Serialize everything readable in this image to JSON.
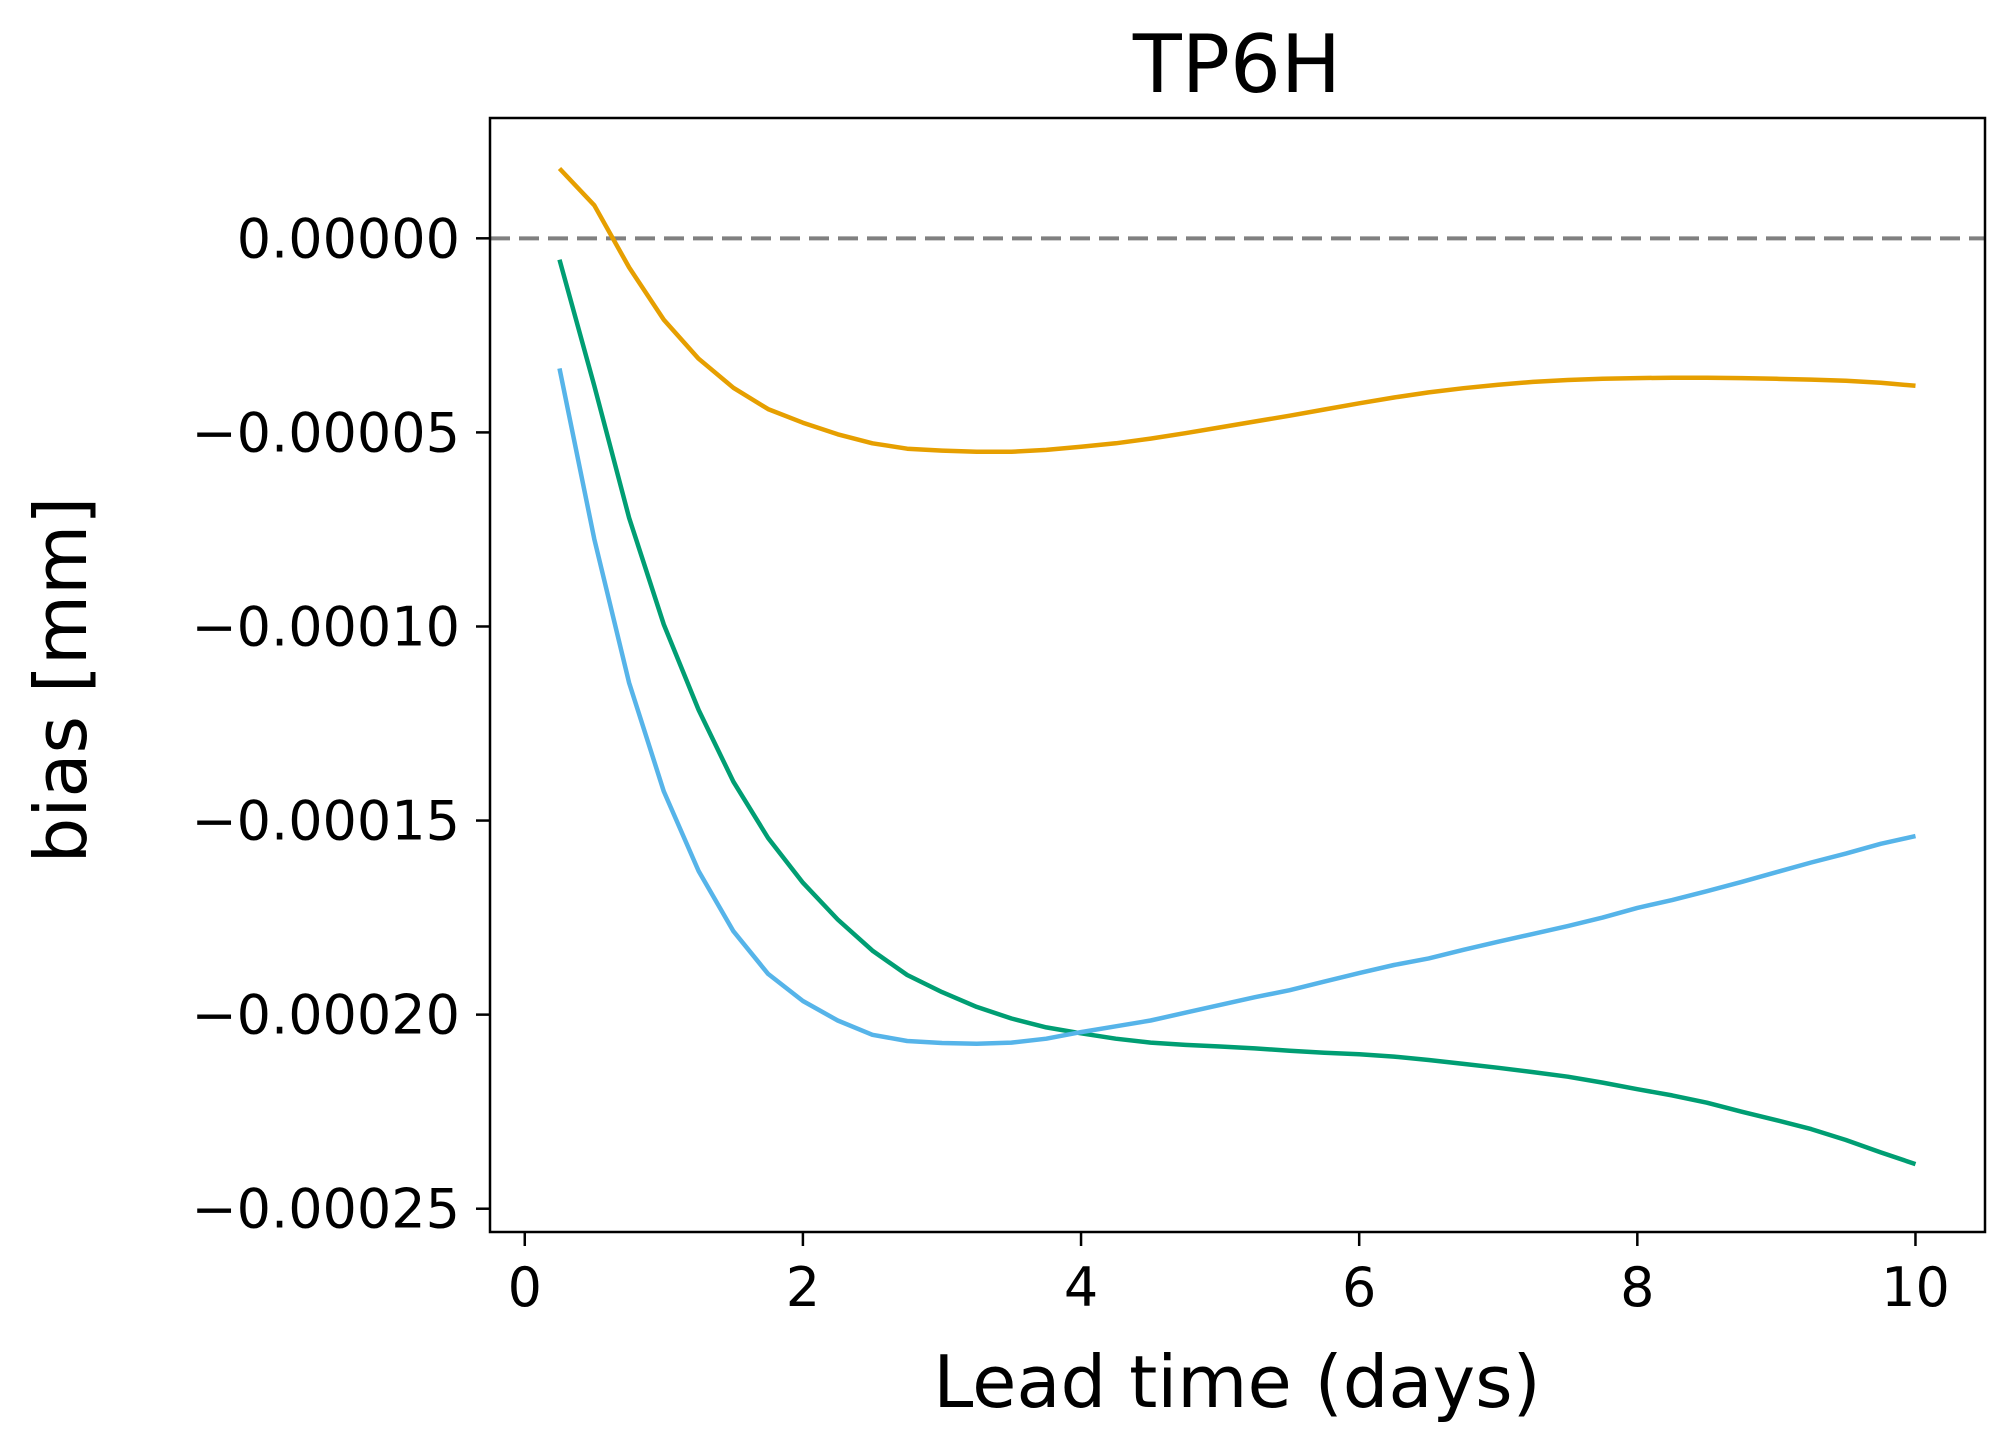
{
  "chart_data": {
    "type": "line",
    "title": "TP6H",
    "xlabel": "Lead time (days)",
    "ylabel": "bias [mm]",
    "xlim": [
      -0.25,
      10.5
    ],
    "ylim": [
      -0.000256,
      3.1e-05
    ],
    "xticks": [
      0,
      2,
      4,
      6,
      8,
      10
    ],
    "xtick_labels": [
      "0",
      "2",
      "4",
      "6",
      "8",
      "10"
    ],
    "yticks": [
      0.0,
      -5e-05,
      -0.0001,
      -0.00015,
      -0.0002,
      -0.00025
    ],
    "ytick_labels": [
      "0.00000",
      "−0.00005",
      "−0.00010",
      "−0.00015",
      "−0.00020",
      "−0.00025"
    ],
    "grid": false,
    "reference_line": {
      "y": 0.0,
      "style": "dashed",
      "color": "#808080"
    },
    "x": [
      0.25,
      0.5,
      0.75,
      1.0,
      1.25,
      1.5,
      1.75,
      2.0,
      2.25,
      2.5,
      2.75,
      3.0,
      3.25,
      3.5,
      3.75,
      4.0,
      4.25,
      4.5,
      4.75,
      5.0,
      5.25,
      5.5,
      5.75,
      6.0,
      6.25,
      6.5,
      6.75,
      7.0,
      7.25,
      7.5,
      7.75,
      8.0,
      8.25,
      8.5,
      8.75,
      9.0,
      9.25,
      9.5,
      9.75,
      10.0
    ],
    "series": [
      {
        "color": "#E69F00",
        "values": [
          1.8e-05,
          8.5e-06,
          -7.5e-06,
          -2.1e-05,
          -3.1e-05,
          -3.85e-05,
          -4.4e-05,
          -4.75e-05,
          -5.05e-05,
          -5.28e-05,
          -5.42e-05,
          -5.47e-05,
          -5.5e-05,
          -5.5e-05,
          -5.45e-05,
          -5.37e-05,
          -5.28e-05,
          -5.16e-05,
          -5.02e-05,
          -4.87e-05,
          -4.72e-05,
          -4.57e-05,
          -4.41e-05,
          -4.25e-05,
          -4.1e-05,
          -3.97e-05,
          -3.86e-05,
          -3.77e-05,
          -3.7e-05,
          -3.65e-05,
          -3.62e-05,
          -3.6e-05,
          -3.59e-05,
          -3.59e-05,
          -3.6e-05,
          -3.62e-05,
          -3.64e-05,
          -3.67e-05,
          -3.72e-05,
          -3.8e-05
        ]
      },
      {
        "color": "#009E73",
        "values": [
          -5.5e-06,
          -3.8e-05,
          -7.2e-05,
          -9.95e-05,
          -0.0001215,
          -0.00014,
          -0.0001545,
          -0.000166,
          -0.0001755,
          -0.0001835,
          -0.0001898,
          -0.0001942,
          -0.000198,
          -0.000201,
          -0.0002033,
          -0.0002048,
          -0.0002062,
          -0.0002072,
          -0.0002078,
          -0.0002082,
          -0.0002087,
          -0.0002093,
          -0.0002098,
          -0.0002102,
          -0.0002108,
          -0.0002117,
          -0.0002127,
          -0.0002137,
          -0.0002148,
          -0.000216,
          -0.0002175,
          -0.0002192,
          -0.0002208,
          -0.0002227,
          -0.000225,
          -0.0002272,
          -0.0002295,
          -0.0002323,
          -0.0002355,
          -0.0002385
        ]
      },
      {
        "color": "#56B4E9",
        "values": [
          -3.35e-05,
          -7.75e-05,
          -0.0001145,
          -0.0001425,
          -0.000163,
          -0.0001785,
          -0.0001895,
          -0.0001965,
          -0.0002015,
          -0.0002052,
          -0.0002068,
          -0.0002073,
          -0.0002075,
          -0.0002072,
          -0.0002062,
          -0.0002045,
          -0.000203,
          -0.0002015,
          -0.0001995,
          -0.0001975,
          -0.0001955,
          -0.0001937,
          -0.0001915,
          -0.0001893,
          -0.0001872,
          -0.0001855,
          -0.0001833,
          -0.0001812,
          -0.0001792,
          -0.0001772,
          -0.000175,
          -0.0001725,
          -0.0001705,
          -0.0001682,
          -0.0001658,
          -0.0001633,
          -0.0001608,
          -0.0001585,
          -0.000156,
          -0.000154
        ]
      }
    ]
  }
}
